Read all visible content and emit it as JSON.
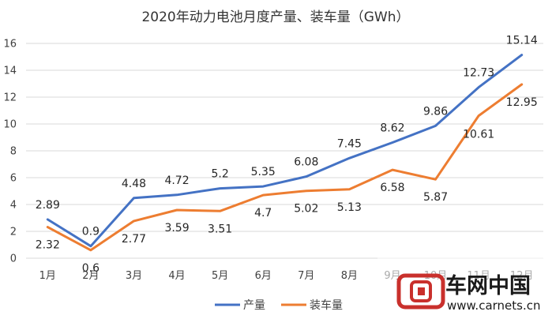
{
  "chart_data": {
    "type": "line",
    "title": "2020年动力电池月度产量、装车量（GWh）",
    "categories": [
      "1月",
      "2月",
      "3月",
      "4月",
      "5月",
      "6月",
      "7月",
      "8月",
      "9月",
      "10月",
      "11月",
      "12月"
    ],
    "ylim": [
      0,
      16
    ],
    "yticks": [
      "0",
      "2",
      "4",
      "6",
      "8",
      "10",
      "12",
      "14",
      "16"
    ],
    "grid": true,
    "legend_position": "bottom",
    "series": [
      {
        "name": "产量",
        "color": "#4472c4",
        "values": [
          2.89,
          0.9,
          4.48,
          4.72,
          5.2,
          5.35,
          6.08,
          7.45,
          8.62,
          9.86,
          12.73,
          15.14
        ],
        "labels": [
          "2.89",
          "0.9",
          "4.48",
          "4.72",
          "5.2",
          "5.35",
          "6.08",
          "7.45",
          "8.62",
          "9.86",
          "12.73",
          "15.14"
        ]
      },
      {
        "name": "装车量",
        "color": "#ed7d31",
        "values": [
          2.32,
          0.6,
          2.77,
          3.59,
          3.51,
          4.7,
          5.02,
          5.13,
          6.58,
          5.87,
          10.61,
          12.95
        ],
        "labels": [
          "2.32",
          "0.6",
          "2.77",
          "3.59",
          "3.51",
          "4.7",
          "5.02",
          "5.13",
          "6.58",
          "5.87",
          "10.61",
          "12.95"
        ]
      }
    ]
  },
  "watermark": {
    "brand": "车网中国",
    "url": "www.carnets.cn",
    "logo_icon": "carnets-logo-icon"
  }
}
